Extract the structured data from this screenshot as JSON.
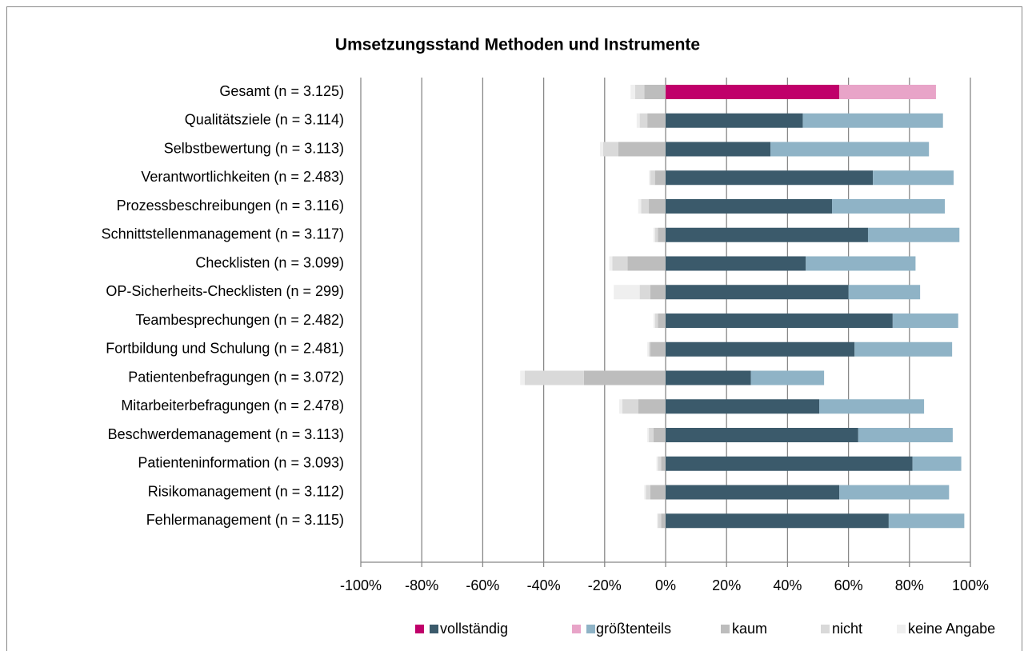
{
  "chart_data": {
    "type": "diverging_stacked_bar",
    "title": "Umsetzungsstand Methoden und Instrumente",
    "categories": [
      "Gesamt (n = 3.125)",
      "Qualitätsziele (n = 3.114)",
      "Selbstbewertung (n = 3.113)",
      "Verantwortlichkeiten (n = 2.483)",
      "Prozessbeschreibungen (n = 3.116)",
      "Schnittstellenmanagement (n = 3.117)",
      "Checklisten (n = 3.099)",
      "OP-Sicherheits-Checklisten (n = 299)",
      "Teambesprechungen (n = 2.482)",
      "Fortbildung und Schulung (n = 2.481)",
      "Patientenbefragungen (n = 3.072)",
      "Mitarbeiterbefragungen (n = 2.478)",
      "Beschwerdemanagement  (n = 3.113)",
      "Patienteninformation (n = 3.093)",
      "Risikomanagement (n = 3.112)",
      "Fehlermanagement  (n = 3.115)"
    ],
    "highlight_category": 0,
    "series": [
      {
        "name": "vollständig",
        "direction": "positive",
        "color": "#3b5a6b",
        "highlight_color": "#c0006a",
        "values": [
          57,
          45,
          34.4,
          68,
          54.6,
          66.4,
          46,
          60,
          74.5,
          62,
          28,
          50.4,
          63.2,
          81,
          57,
          73.2
        ]
      },
      {
        "name": "größtenteils",
        "direction": "positive",
        "color": "#8fb3c6",
        "highlight_color": "#e8a4c8",
        "values": [
          31.7,
          46,
          52,
          26.5,
          37,
          30,
          36,
          23.5,
          21.5,
          32,
          24,
          34.4,
          31,
          16,
          36,
          24.8
        ]
      },
      {
        "name": "kaum",
        "direction": "negative",
        "color": "#bdbdbd",
        "values": [
          7,
          6,
          15.5,
          3.5,
          5.5,
          2.5,
          12.5,
          5,
          2.5,
          5,
          26.8,
          9,
          4,
          1.5,
          5,
          1.5
        ]
      },
      {
        "name": "nicht",
        "direction": "negative",
        "color": "#d9d9d9",
        "values": [
          3,
          2.5,
          5,
          1.5,
          2.5,
          1,
          5,
          3.5,
          1,
          0.5,
          19.4,
          5.2,
          1.5,
          1,
          1.5,
          1
        ]
      },
      {
        "name": "keine Angabe",
        "direction": "negative",
        "color": "#efefef",
        "values": [
          1.5,
          1,
          1,
          0.5,
          1,
          0.5,
          1,
          8.5,
          0.5,
          0.5,
          1.5,
          1,
          0.5,
          0.5,
          0.5,
          0.3
        ]
      }
    ],
    "xlim": [
      -100,
      100
    ],
    "xticks": [
      {
        "value": -100,
        "label": "-100%"
      },
      {
        "value": -80,
        "label": "-80%"
      },
      {
        "value": -60,
        "label": "-60%"
      },
      {
        "value": -40,
        "label": "-40%"
      },
      {
        "value": -20,
        "label": "-20%"
      },
      {
        "value": 0,
        "label": "0%"
      },
      {
        "value": 20,
        "label": "20%"
      },
      {
        "value": 40,
        "label": "40%"
      },
      {
        "value": 60,
        "label": "60%"
      },
      {
        "value": 80,
        "label": "80%"
      },
      {
        "value": 100,
        "label": "100%"
      }
    ],
    "grid": true,
    "legend": "bottom"
  }
}
